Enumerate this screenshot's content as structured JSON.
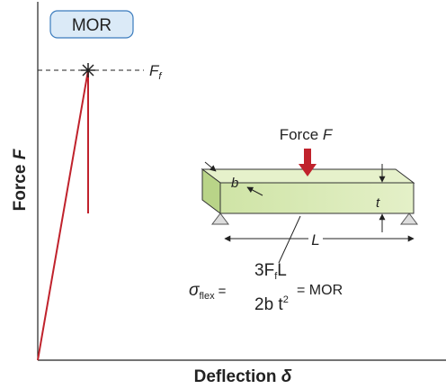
{
  "badge": "MOR",
  "axes": {
    "y_label": {
      "text": "Force",
      "symbol": "F"
    },
    "x_label": {
      "text": "Deflection",
      "symbol": "δ"
    }
  },
  "peak_label": {
    "symbol": "F",
    "subscript": "f"
  },
  "beam": {
    "force_label": {
      "text": "Force",
      "symbol": "F"
    },
    "width": "b",
    "thickness": "t",
    "length": "L"
  },
  "formula": {
    "lhs": {
      "symbol": "σ",
      "subscript": "flex",
      "equals": "="
    },
    "numerator": {
      "coefficient": "3F",
      "subscript": "f",
      "tail": "L"
    },
    "denominator": {
      "base": "2b t",
      "exponent": "2"
    },
    "rhs": "= MOR"
  }
}
